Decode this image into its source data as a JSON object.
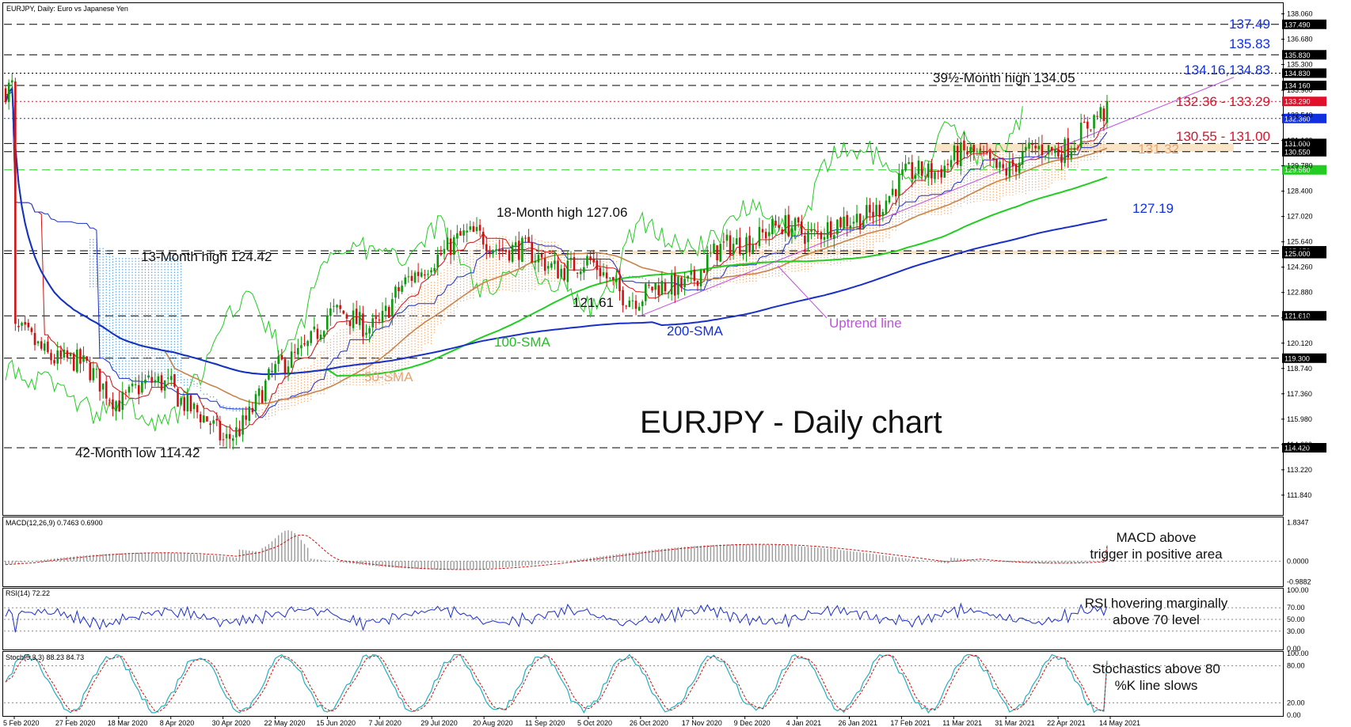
{
  "header": {
    "symbol_label": "EURJPY, Daily:  Euro vs Japanese Yen"
  },
  "big_title": "EURJPY - Daily chart",
  "colors": {
    "bull": "#0a9a0a",
    "bear": "#d01010",
    "sma50": "#c8844a",
    "sma100": "#22cc22",
    "sma200": "#1a2ec8",
    "tenkan": "#d01010",
    "kijun": "#1a2ec8",
    "chikou": "#22cc22",
    "cloud_a": "#f4b07a",
    "cloud_b": "#5aa8e8",
    "uptrend": "#c050e0",
    "macd_hist": "#9a9a9a",
    "macd_signal": "#d01010",
    "rsi": "#1a2ec8",
    "stoch_k": "#20b0c0",
    "stoch_d": "#d01010",
    "zone_fill": "#f7d9b0"
  },
  "price_axis": {
    "ticks": [
      "138.060",
      "136.680",
      "135.300",
      "133.900",
      "132.540",
      "131.160",
      "129.780",
      "128.400",
      "127.020",
      "125.640",
      "124.260",
      "122.880",
      "121.500",
      "120.120",
      "118.740",
      "117.360",
      "115.980",
      "114.600",
      "113.220",
      "111.840"
    ],
    "tick_values": [
      138.06,
      136.68,
      135.3,
      133.9,
      132.54,
      131.16,
      129.78,
      128.4,
      127.02,
      125.64,
      124.26,
      122.88,
      121.5,
      120.12,
      118.74,
      117.36,
      115.98,
      114.6,
      113.22,
      111.84
    ],
    "ylim": [
      110.8,
      138.6
    ]
  },
  "level_lines": [
    {
      "value": 137.49,
      "label": "137.490",
      "style": "dashed",
      "color": "#000000",
      "badge": "#000000"
    },
    {
      "value": 135.83,
      "label": "135.830",
      "style": "dashed",
      "color": "#000000",
      "badge": "#000000"
    },
    {
      "value": 134.83,
      "label": "134.830",
      "style": "dotted",
      "color": "#000000",
      "badge": "#000000"
    },
    {
      "value": 134.16,
      "label": "134.160",
      "style": "dashed",
      "color": "#000000",
      "badge": "#000000"
    },
    {
      "value": 133.29,
      "label": "133.290",
      "style": "dotted",
      "color": "#e0102a",
      "badge": "#e0102a"
    },
    {
      "value": 132.36,
      "label": "132.360",
      "style": "dotted",
      "color": "#1030e0",
      "badge": "#1030e0"
    },
    {
      "value": 131.0,
      "label": "131.000",
      "style": "dashed",
      "color": "#000000",
      "badge": "#000000"
    },
    {
      "value": 130.55,
      "label": "130.550",
      "style": "dashed",
      "color": "#000000",
      "badge": "#000000"
    },
    {
      "value": 129.56,
      "label": "129.560",
      "style": "dashed",
      "color": "#22cc22",
      "badge": "#22cc22"
    },
    {
      "value": 125.15,
      "label": "125.150",
      "style": "dashed",
      "color": "#000000",
      "badge": "#000000"
    },
    {
      "value": 125.0,
      "label": "125.000",
      "style": "dashed",
      "color": "#000000",
      "badge": "#000000"
    },
    {
      "value": 121.61,
      "label": "121.610",
      "style": "dashed",
      "color": "#000000",
      "badge": "#000000"
    },
    {
      "value": 119.3,
      "label": "119.300",
      "style": "dashed",
      "color": "#000000",
      "badge": "#000000"
    },
    {
      "value": 114.42,
      "label": "114.420",
      "style": "dashed",
      "color": "#000000",
      "badge": "#000000"
    }
  ],
  "annotations": {
    "lvl_137_49": "137.49",
    "lvl_135_83": "135.83",
    "lvl_134": "134.16,134.83",
    "lvl_132": "132.36 - 133.29",
    "lvl_131_32": "131.32",
    "lvl_130": "130.55 - 131.00",
    "lvl_127_19": "127.19",
    "high_39": "39½-Month high 134.05",
    "high_18": "18-Month high 127.06",
    "high_13": "13-Month high 124.42",
    "low_121": "121.61",
    "low_42": "42-Month low 114.42",
    "sma200": "200-SMA",
    "sma100": "100-SMA",
    "sma50": "50-SMA",
    "uptrend": "Uptrend line"
  },
  "x_axis": {
    "labels": [
      "5 Feb 2020",
      "27 Feb 2020",
      "18 Mar 2020",
      "8 Apr 2020",
      "30 Apr 2020",
      "22 May 2020",
      "15 Jun 2020",
      "7 Jul 2020",
      "29 Jul 2020",
      "20 Aug 2020",
      "11 Sep 2020",
      "5 Oct 2020",
      "26 Oct 2020",
      "17 Nov 2020",
      "9 Dec 2020",
      "4 Jan 2021",
      "26 Jan 2021",
      "17 Feb 2021",
      "11 Mar 2021",
      "31 Mar 2021",
      "22 Apr 2021",
      "14 May 2021"
    ]
  },
  "macd": {
    "title": "MACD(12,26,9) 0.7463 0.6900",
    "ticks": [
      "1.8347",
      "0.0000",
      "-0.9882"
    ],
    "tick_values": [
      1.8347,
      0.0,
      -0.9882
    ],
    "note_line1": "MACD above",
    "note_line2": "trigger in positive area"
  },
  "rsi": {
    "title": "RSI(14) 72.22",
    "ticks": [
      "100.00",
      "70.00",
      "50.00",
      "30.00",
      "0.00"
    ],
    "tick_values": [
      100,
      70,
      50,
      30,
      0
    ],
    "note_line1": "RSI hovering marginally",
    "note_line2": "above 70 level"
  },
  "stoch": {
    "title": "Stoch(5,3,3) 88.23 84.73",
    "ticks": [
      "100.00",
      "80.00",
      "20.00",
      "0.00"
    ],
    "tick_values": [
      100,
      80,
      20,
      0
    ],
    "note_line1": "Stochastics above 80",
    "note_line2": "%K line slows"
  },
  "chart_data": {
    "type": "candlestick",
    "title": "EURJPY - Daily chart",
    "ylim": [
      110.8,
      138.6
    ],
    "price_path_anchors": [
      {
        "x": "5 Feb 2020",
        "y": 120.5
      },
      {
        "x": "27 Feb 2020",
        "y": 119.3
      },
      {
        "x": "18 Mar 2020",
        "y": 117.2
      },
      {
        "x": "8 Apr 2020",
        "y": 118.0
      },
      {
        "x": "30 Apr 2020",
        "y": 114.6
      },
      {
        "x": "22 May 2020",
        "y": 118.3
      },
      {
        "x": "15 Jun 2020",
        "y": 121.5
      },
      {
        "x": "7 Jul 2020",
        "y": 121.3
      },
      {
        "x": "29 Jul 2020",
        "y": 125.0
      },
      {
        "x": "20 Aug 2020",
        "y": 126.0
      },
      {
        "x": "11 Sep 2020",
        "y": 124.6
      },
      {
        "x": "5 Oct 2020",
        "y": 124.3
      },
      {
        "x": "26 Oct 2020",
        "y": 122.5
      },
      {
        "x": "17 Nov 2020",
        "y": 123.8
      },
      {
        "x": "9 Dec 2020",
        "y": 126.0
      },
      {
        "x": "4 Jan 2021",
        "y": 126.3
      },
      {
        "x": "26 Jan 2021",
        "y": 126.5
      },
      {
        "x": "17 Feb 2021",
        "y": 128.8
      },
      {
        "x": "11 Mar 2021",
        "y": 130.3
      },
      {
        "x": "31 Mar 2021",
        "y": 129.8
      },
      {
        "x": "22 Apr 2021",
        "y": 130.8
      },
      {
        "x": "14 May 2021",
        "y": 132.6
      }
    ],
    "last_price": 133.9,
    "sma200_last": 127.19,
    "sma100_last": 129.56,
    "sma50_last": 131.32,
    "uptrend_line": [
      {
        "x": "26 Oct 2020",
        "y": 121.61
      },
      {
        "x": "14 May 2021",
        "y": 131.9
      }
    ],
    "macd_last": 0.7463,
    "macd_signal_last": 0.69,
    "rsi_last": 72.22,
    "stoch_k_last": 88.23,
    "stoch_d_last": 84.73
  }
}
